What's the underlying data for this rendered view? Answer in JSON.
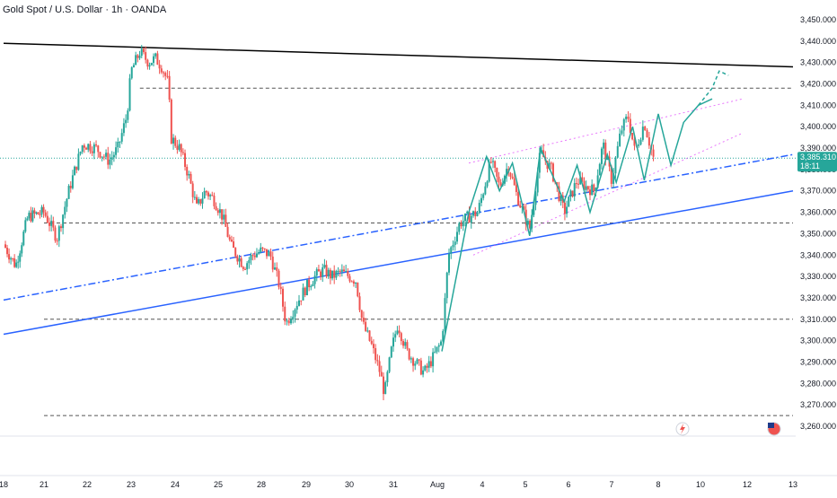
{
  "chart_data": {
    "type": "candlestick",
    "title": "Gold Spot / U.S. Dollar · 1h · OANDA",
    "colors": {
      "up": "#26a69a",
      "down": "#ef5350",
      "trendline": "#000000",
      "support": "#2962ff",
      "channel": "#e040fb",
      "projection": "#26a69a",
      "level": "#555555"
    },
    "x_axis": {
      "ticks": [
        {
          "label": "18",
          "day": -1
        },
        {
          "label": "21",
          "day": 0
        },
        {
          "label": "22",
          "day": 1
        },
        {
          "label": "23",
          "day": 2
        },
        {
          "label": "24",
          "day": 3
        },
        {
          "label": "25",
          "day": 4
        },
        {
          "label": "28",
          "day": 5
        },
        {
          "label": "29",
          "day": 6
        },
        {
          "label": "30",
          "day": 7
        },
        {
          "label": "31",
          "day": 8
        },
        {
          "label": "Aug",
          "day": 9
        },
        {
          "label": "4",
          "day": 10
        },
        {
          "label": "5",
          "day": 11
        },
        {
          "label": "6",
          "day": 12
        },
        {
          "label": "7",
          "day": 13
        },
        {
          "label": "8",
          "day": 14
        },
        {
          "label": "10",
          "day": 15
        },
        {
          "label": "12",
          "day": 16
        },
        {
          "label": "13",
          "day": 17
        }
      ]
    },
    "y_axis": {
      "range": [
        3250,
        3455
      ],
      "ticks": [
        "3,450.000",
        "3,440.000",
        "3,430.000",
        "3,420.000",
        "3,410.000",
        "3,400.000",
        "3,390.000",
        "3,380.000",
        "3,370.000",
        "3,360.000",
        "3,350.000",
        "3,340.000",
        "3,330.000",
        "3,320.000",
        "3,310.000",
        "3,300.000",
        "3,290.000",
        "3,280.000",
        "3,270.000",
        "3,260.000"
      ],
      "tick_values": [
        3450,
        3440,
        3430,
        3420,
        3410,
        3400,
        3390,
        3380,
        3370,
        3360,
        3350,
        3340,
        3330,
        3320,
        3310,
        3300,
        3290,
        3280,
        3270,
        3260
      ]
    },
    "price_path": [
      [
        -1.0,
        3345
      ],
      [
        -0.7,
        3335
      ],
      [
        -0.4,
        3358
      ],
      [
        0.0,
        3360
      ],
      [
        0.3,
        3348
      ],
      [
        0.6,
        3372
      ],
      [
        0.9,
        3392
      ],
      [
        1.2,
        3390
      ],
      [
        1.5,
        3384
      ],
      [
        1.7,
        3390
      ],
      [
        1.9,
        3405
      ],
      [
        2.0,
        3426
      ],
      [
        2.2,
        3435
      ],
      [
        2.4,
        3430
      ],
      [
        2.55,
        3432
      ],
      [
        2.7,
        3428
      ],
      [
        2.85,
        3420
      ],
      [
        2.9,
        3395
      ],
      [
        3.1,
        3390
      ],
      [
        3.3,
        3378
      ],
      [
        3.5,
        3362
      ],
      [
        3.7,
        3370
      ],
      [
        3.9,
        3366
      ],
      [
        4.1,
        3358
      ],
      [
        4.3,
        3344
      ],
      [
        4.6,
        3335
      ],
      [
        4.8,
        3340
      ],
      [
        5.0,
        3342
      ],
      [
        5.2,
        3340
      ],
      [
        5.4,
        3326
      ],
      [
        5.55,
        3308
      ],
      [
        5.8,
        3318
      ],
      [
        6.0,
        3325
      ],
      [
        6.2,
        3330
      ],
      [
        6.4,
        3333
      ],
      [
        6.6,
        3330
      ],
      [
        6.8,
        3332
      ],
      [
        7.0,
        3330
      ],
      [
        7.15,
        3328
      ],
      [
        7.3,
        3308
      ],
      [
        7.5,
        3298
      ],
      [
        7.7,
        3285
      ],
      [
        7.8,
        3275
      ],
      [
        7.95,
        3295
      ],
      [
        8.1,
        3308
      ],
      [
        8.3,
        3295
      ],
      [
        8.5,
        3290
      ],
      [
        8.7,
        3285
      ],
      [
        8.9,
        3292
      ],
      [
        9.1,
        3300
      ],
      [
        9.25,
        3340
      ],
      [
        9.5,
        3355
      ],
      [
        9.7,
        3358
      ],
      [
        9.9,
        3360
      ],
      [
        10.2,
        3384
      ],
      [
        10.4,
        3372
      ],
      [
        10.6,
        3382
      ],
      [
        10.8,
        3368
      ],
      [
        11.1,
        3352
      ],
      [
        11.35,
        3388
      ],
      [
        11.6,
        3380
      ],
      [
        11.9,
        3360
      ],
      [
        12.2,
        3375
      ],
      [
        12.4,
        3372
      ],
      [
        12.6,
        3370
      ],
      [
        12.8,
        3392
      ],
      [
        13.0,
        3375
      ],
      [
        13.2,
        3398
      ],
      [
        13.35,
        3405
      ],
      [
        13.5,
        3388
      ],
      [
        13.7,
        3402
      ],
      [
        13.9,
        3385
      ]
    ],
    "lines": [
      {
        "kind": "trendline",
        "points": [
          [
            -1.0,
            3439
          ],
          [
            17.0,
            3428
          ]
        ]
      },
      {
        "kind": "support",
        "points": [
          [
            -1.0,
            3303
          ],
          [
            17.0,
            3370
          ]
        ]
      },
      {
        "kind": "support-dashdot",
        "points": [
          [
            -1.0,
            3319
          ],
          [
            17.0,
            3387
          ]
        ]
      },
      {
        "kind": "channel-upper",
        "points": [
          [
            9.7,
            3383
          ],
          [
            15.9,
            3413
          ]
        ]
      },
      {
        "kind": "channel-lower",
        "points": [
          [
            9.8,
            3340
          ],
          [
            15.9,
            3397
          ]
        ]
      }
    ],
    "levels": [
      {
        "value": 3418,
        "from_day": 2.2,
        "to_day": 17.0
      },
      {
        "value": 3355,
        "from_day": 0.0,
        "to_day": 17.0
      },
      {
        "value": 3310,
        "from_day": 0.0,
        "to_day": 17.0
      },
      {
        "value": 3265,
        "from_day": 0.0,
        "to_day": 17.0
      }
    ],
    "zigzag": [
      [
        9.1,
        3295
      ],
      [
        9.7,
        3360
      ],
      [
        10.1,
        3386
      ],
      [
        10.4,
        3370
      ],
      [
        10.7,
        3383
      ],
      [
        11.1,
        3349
      ],
      [
        11.35,
        3390
      ],
      [
        11.9,
        3365
      ],
      [
        12.2,
        3382
      ],
      [
        12.5,
        3360
      ],
      [
        12.9,
        3387
      ],
      [
        13.1,
        3374
      ],
      [
        13.45,
        3400
      ],
      [
        13.7,
        3375
      ],
      [
        14.0,
        3406
      ],
      [
        14.3,
        3382
      ],
      [
        14.6,
        3402
      ],
      [
        14.95,
        3410
      ],
      [
        15.25,
        3413
      ]
    ],
    "projection": [
      [
        14.95,
        3410
      ],
      [
        15.25,
        3418
      ],
      [
        15.4,
        3426
      ],
      [
        15.6,
        3424
      ]
    ],
    "current_price": {
      "value": 3385.31,
      "label": "3,385.310",
      "countdown": "18:11"
    }
  }
}
